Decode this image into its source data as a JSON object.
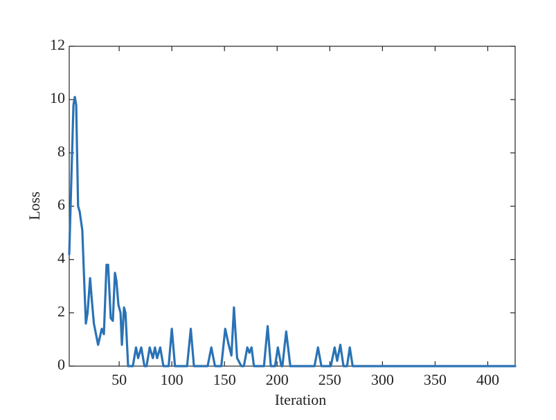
{
  "chart_data": {
    "type": "line",
    "xlabel": "Iteration",
    "ylabel": "Loss",
    "xlim": [
      2.6,
      426
    ],
    "ylim": [
      0,
      12
    ],
    "xticks": [
      50,
      100,
      150,
      200,
      250,
      300,
      350,
      400
    ],
    "yticks": [
      0,
      2,
      4,
      6,
      8,
      10,
      12
    ],
    "series": [
      {
        "color": "#2a72b5",
        "x": [
          2.6,
          6.6,
          7.9,
          9.2,
          11,
          12.5,
          15,
          17,
          18.4,
          20,
          22.4,
          24,
          26,
          30,
          33.5,
          35.5,
          38,
          39.5,
          42,
          44,
          46,
          47.4,
          49.3,
          51.3,
          52.6,
          54.6,
          56,
          58.5,
          63,
          66,
          68,
          71,
          74,
          76,
          79,
          82,
          84,
          86,
          89,
          92,
          97,
          100,
          103,
          114.5,
          118,
          121,
          134,
          137.5,
          141,
          147,
          150.7,
          154,
          156.6,
          159,
          162,
          166,
          168.4,
          171.7,
          173.7,
          175.7,
          178,
          187.5,
          191,
          194,
          198,
          200.7,
          204,
          205,
          208.6,
          212.5,
          235.5,
          238.8,
          242,
          251,
          254.6,
          257,
          260,
          263,
          266.4,
          269,
          271.7,
          426
        ],
        "values": [
          4.2,
          9.8,
          10.1,
          9.8,
          6,
          5.8,
          5.1,
          3,
          1.6,
          2,
          3.3,
          2.5,
          1.6,
          0.8,
          1.4,
          1.2,
          3.8,
          3.8,
          1.8,
          1.7,
          3.5,
          3.2,
          2.3,
          2,
          0.8,
          2.2,
          2,
          0,
          0,
          0.7,
          0.3,
          0.7,
          0,
          0,
          0.7,
          0.3,
          0.7,
          0.3,
          0.7,
          0,
          0,
          1.4,
          0,
          0,
          1.4,
          0,
          0,
          0.7,
          0,
          0,
          1.4,
          0.8,
          0.4,
          2.2,
          0.3,
          0,
          0,
          0.7,
          0.5,
          0.7,
          0,
          0,
          1.5,
          0,
          0,
          0.7,
          0,
          0,
          1.3,
          0,
          0,
          0.7,
          0,
          0,
          0.7,
          0.2,
          0.8,
          0,
          0,
          0.7,
          0,
          0
        ]
      }
    ]
  }
}
